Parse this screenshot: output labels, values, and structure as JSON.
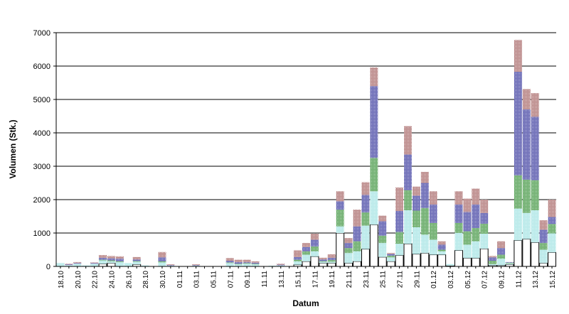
{
  "chart_data": {
    "type": "bar",
    "stacked": true,
    "xlabel": "Datum",
    "ylabel": "Volumen (Stk.)",
    "ylim": [
      0,
      7000
    ],
    "yticks": [
      0,
      1000,
      2000,
      3000,
      4000,
      5000,
      6000,
      7000
    ],
    "grid": true,
    "categories": [
      "18.10",
      "19.10",
      "20.10",
      "21.10",
      "22.10",
      "23.10",
      "24.10",
      "25.10",
      "26.10",
      "27.10",
      "28.10",
      "29.10",
      "30.10",
      "31.10",
      "01.11",
      "02.11",
      "03.11",
      "04.11",
      "05.11",
      "06.11",
      "07.11",
      "08.11",
      "09.11",
      "10.11",
      "11.11",
      "12.11",
      "13.11",
      "14.11",
      "15.11",
      "16.11",
      "17.11",
      "18.11",
      "19.11",
      "20.11",
      "21.11",
      "22.11",
      "23.11",
      "24.11",
      "25.11",
      "26.11",
      "27.11",
      "28.11",
      "29.11",
      "30.11",
      "01.12",
      "02.12",
      "03.12",
      "04.12",
      "05.12",
      "06.12",
      "07.12",
      "08.12",
      "09.12",
      "10.12",
      "11.12",
      "12.12",
      "13.12",
      "14.12",
      "15.12"
    ],
    "series": [
      {
        "color": "#ffffff",
        "values": [
          0,
          0,
          0,
          0,
          0,
          80,
          100,
          0,
          0,
          60,
          0,
          0,
          0,
          0,
          0,
          0,
          0,
          0,
          0,
          0,
          0,
          0,
          0,
          0,
          0,
          0,
          0,
          0,
          50,
          150,
          300,
          100,
          100,
          1000,
          100,
          150,
          520,
          1250,
          280,
          150,
          330,
          680,
          370,
          400,
          350,
          350,
          20,
          480,
          250,
          250,
          530,
          30,
          30,
          60,
          780,
          820,
          720,
          100,
          420
        ]
      },
      {
        "color": "#99e0e0",
        "pattern": true,
        "values": [
          100,
          40,
          80,
          30,
          80,
          100,
          50,
          130,
          100,
          80,
          30,
          0,
          120,
          20,
          0,
          0,
          20,
          0,
          0,
          0,
          100,
          60,
          80,
          60,
          0,
          20,
          30,
          0,
          100,
          200,
          150,
          40,
          40,
          200,
          300,
          300,
          700,
          1000,
          420,
          120,
          350,
          1000,
          800,
          550,
          450,
          100,
          50,
          520,
          400,
          500,
          450,
          40,
          200,
          30,
          950,
          780,
          960,
          400,
          570
        ]
      },
      {
        "color": "#2e8b2e",
        "pattern": true,
        "values": [
          0,
          0,
          0,
          0,
          0,
          20,
          30,
          20,
          0,
          20,
          0,
          0,
          30,
          0,
          0,
          0,
          0,
          0,
          0,
          0,
          20,
          20,
          20,
          20,
          0,
          0,
          0,
          0,
          50,
          100,
          150,
          20,
          50,
          500,
          150,
          300,
          400,
          1000,
          220,
          50,
          350,
          600,
          500,
          800,
          500,
          50,
          0,
          300,
          400,
          400,
          300,
          100,
          120,
          20,
          1000,
          1000,
          900,
          200,
          280
        ]
      },
      {
        "color": "#2a2a96",
        "pattern": true,
        "values": [
          0,
          20,
          20,
          0,
          20,
          60,
          60,
          80,
          0,
          50,
          0,
          0,
          120,
          20,
          0,
          0,
          20,
          0,
          0,
          0,
          50,
          50,
          30,
          30,
          0,
          0,
          20,
          0,
          80,
          130,
          200,
          50,
          70,
          250,
          150,
          450,
          520,
          2150,
          430,
          50,
          630,
          1070,
          450,
          750,
          550,
          150,
          0,
          550,
          580,
          700,
          320,
          100,
          200,
          20,
          3100,
          2100,
          1900,
          400,
          210
        ]
      },
      {
        "color": "#a05a5a",
        "pattern": true,
        "values": [
          0,
          20,
          30,
          0,
          20,
          80,
          70,
          70,
          0,
          70,
          0,
          0,
          160,
          20,
          0,
          0,
          20,
          0,
          0,
          0,
          80,
          70,
          70,
          40,
          0,
          0,
          30,
          0,
          200,
          120,
          180,
          50,
          100,
          300,
          150,
          500,
          380,
          560,
          170,
          30,
          700,
          850,
          270,
          330,
          400,
          100,
          0,
          400,
          400,
          480,
          400,
          40,
          200,
          0,
          950,
          610,
          710,
          280,
          520
        ]
      }
    ]
  }
}
